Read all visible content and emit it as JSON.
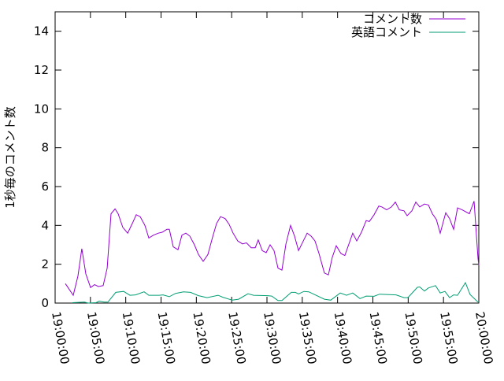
{
  "chart_data": {
    "type": "line",
    "title": "",
    "xlabel": "",
    "ylabel": "1秒毎のコメント数",
    "xlim": [
      "19:00:00",
      "20:00:00"
    ],
    "ylim": [
      0,
      15
    ],
    "x_ticks": [
      "19:00:00",
      "19:05:00",
      "19:10:00",
      "19:15:00",
      "19:20:00",
      "19:25:00",
      "19:30:00",
      "19:35:00",
      "19:40:00",
      "19:45:00",
      "19:50:00",
      "19:55:00",
      "20:00:00"
    ],
    "y_ticks": [
      0,
      2,
      4,
      6,
      8,
      10,
      12,
      14
    ],
    "grid": false,
    "legend_position": "top-right",
    "series": [
      {
        "name": "コメント数",
        "color": "#9400d3",
        "points": [
          [
            "19:01:27",
            1.0
          ],
          [
            "19:02:34",
            0.4
          ],
          [
            "19:03:14",
            1.4
          ],
          [
            "19:03:47",
            2.8
          ],
          [
            "19:04:21",
            1.5
          ],
          [
            "19:05:01",
            0.8
          ],
          [
            "19:05:35",
            0.95
          ],
          [
            "19:06:08",
            0.85
          ],
          [
            "19:06:48",
            0.9
          ],
          [
            "19:07:22",
            1.8
          ],
          [
            "19:07:55",
            4.6
          ],
          [
            "19:08:29",
            4.85
          ],
          [
            "19:08:55",
            4.6
          ],
          [
            "19:09:35",
            3.9
          ],
          [
            "19:10:16",
            3.6
          ],
          [
            "19:10:56",
            4.1
          ],
          [
            "19:11:29",
            4.55
          ],
          [
            "19:12:03",
            4.45
          ],
          [
            "19:12:43",
            4.0
          ],
          [
            "19:13:16",
            3.35
          ],
          [
            "19:13:56",
            3.5
          ],
          [
            "19:14:37",
            3.6
          ],
          [
            "19:15:10",
            3.65
          ],
          [
            "19:15:50",
            3.8
          ],
          [
            "19:16:10",
            3.8
          ],
          [
            "19:16:44",
            2.9
          ],
          [
            "19:17:24",
            2.75
          ],
          [
            "19:17:57",
            3.5
          ],
          [
            "19:18:31",
            3.6
          ],
          [
            "19:19:04",
            3.45
          ],
          [
            "19:19:44",
            3.0
          ],
          [
            "19:20:18",
            2.5
          ],
          [
            "19:20:58",
            2.15
          ],
          [
            "19:21:38",
            2.5
          ],
          [
            "19:22:18",
            3.4
          ],
          [
            "19:22:52",
            4.1
          ],
          [
            "19:23:25",
            4.45
          ],
          [
            "19:24:05",
            4.35
          ],
          [
            "19:24:39",
            4.05
          ],
          [
            "19:25:12",
            3.6
          ],
          [
            "19:25:52",
            3.2
          ],
          [
            "19:26:32",
            3.05
          ],
          [
            "19:27:06",
            3.1
          ],
          [
            "19:27:46",
            2.85
          ],
          [
            "19:28:20",
            2.85
          ],
          [
            "19:28:46",
            3.25
          ],
          [
            "19:29:20",
            2.7
          ],
          [
            "19:29:53",
            2.6
          ],
          [
            "19:30:27",
            3.0
          ],
          [
            "19:31:00",
            2.7
          ],
          [
            "19:31:34",
            1.8
          ],
          [
            "19:32:07",
            1.7
          ],
          [
            "19:32:41",
            3.05
          ],
          [
            "19:33:21",
            4.0
          ],
          [
            "19:33:54",
            3.45
          ],
          [
            "19:34:28",
            2.7
          ],
          [
            "19:35:41",
            3.6
          ],
          [
            "19:36:15",
            3.45
          ],
          [
            "19:36:48",
            3.2
          ],
          [
            "19:37:22",
            2.55
          ],
          [
            "19:38:08",
            1.55
          ],
          [
            "19:38:42",
            1.45
          ],
          [
            "19:39:15",
            2.35
          ],
          [
            "19:39:49",
            2.95
          ],
          [
            "19:40:29",
            2.55
          ],
          [
            "19:41:02",
            2.45
          ],
          [
            "19:42:09",
            3.6
          ],
          [
            "19:42:43",
            3.2
          ],
          [
            "19:43:23",
            3.65
          ],
          [
            "19:44:03",
            4.25
          ],
          [
            "19:44:30",
            4.2
          ],
          [
            "19:45:10",
            4.55
          ],
          [
            "19:45:50",
            5.0
          ],
          [
            "19:46:17",
            4.95
          ],
          [
            "19:46:57",
            4.8
          ],
          [
            "19:47:37",
            4.95
          ],
          [
            "19:48:11",
            5.2
          ],
          [
            "19:48:44",
            4.8
          ],
          [
            "19:49:24",
            4.75
          ],
          [
            "19:49:51",
            4.5
          ],
          [
            "19:50:31",
            4.75
          ],
          [
            "19:51:05",
            5.2
          ],
          [
            "19:51:38",
            4.95
          ],
          [
            "19:52:18",
            5.1
          ],
          [
            "19:52:52",
            5.05
          ],
          [
            "19:53:25",
            4.6
          ],
          [
            "19:53:59",
            4.3
          ],
          [
            "19:54:32",
            3.6
          ],
          [
            "19:55:19",
            4.65
          ],
          [
            "19:55:52",
            4.35
          ],
          [
            "19:56:26",
            3.8
          ],
          [
            "19:56:59",
            4.9
          ],
          [
            "19:57:39",
            4.8
          ],
          [
            "19:58:40",
            4.6
          ],
          [
            "19:59:20",
            5.25
          ],
          [
            "19:59:53",
            2.3
          ],
          [
            "20:00:00",
            1.95
          ]
        ]
      },
      {
        "name": "英語コメント",
        "color": "#009e73",
        "points": [
          [
            "19:02:27",
            0.02
          ],
          [
            "19:04:08",
            0.05
          ],
          [
            "19:04:41",
            0.0
          ],
          [
            "19:05:48",
            0.02
          ],
          [
            "19:06:15",
            0.1
          ],
          [
            "19:06:55",
            0.05
          ],
          [
            "19:07:28",
            0.05
          ],
          [
            "19:08:35",
            0.55
          ],
          [
            "19:09:42",
            0.6
          ],
          [
            "19:10:36",
            0.4
          ],
          [
            "19:11:23",
            0.42
          ],
          [
            "19:12:36",
            0.58
          ],
          [
            "19:13:16",
            0.4
          ],
          [
            "19:14:43",
            0.4
          ],
          [
            "19:15:17",
            0.42
          ],
          [
            "19:16:10",
            0.33
          ],
          [
            "19:17:04",
            0.5
          ],
          [
            "19:18:11",
            0.58
          ],
          [
            "19:19:11",
            0.55
          ],
          [
            "19:20:18",
            0.38
          ],
          [
            "19:21:31",
            0.28
          ],
          [
            "19:23:05",
            0.4
          ],
          [
            "19:23:45",
            0.3
          ],
          [
            "19:25:05",
            0.15
          ],
          [
            "19:25:59",
            0.2
          ],
          [
            "19:27:19",
            0.48
          ],
          [
            "19:28:06",
            0.4
          ],
          [
            "19:30:07",
            0.38
          ],
          [
            "19:30:40",
            0.36
          ],
          [
            "19:31:34",
            0.13
          ],
          [
            "19:32:07",
            0.13
          ],
          [
            "19:33:27",
            0.55
          ],
          [
            "19:34:01",
            0.55
          ],
          [
            "19:34:28",
            0.47
          ],
          [
            "19:35:14",
            0.6
          ],
          [
            "19:35:55",
            0.58
          ],
          [
            "19:38:08",
            0.2
          ],
          [
            "19:39:02",
            0.15
          ],
          [
            "19:40:22",
            0.52
          ],
          [
            "19:41:16",
            0.4
          ],
          [
            "19:42:09",
            0.52
          ],
          [
            "19:43:10",
            0.23
          ],
          [
            "19:44:03",
            0.36
          ],
          [
            "19:45:10",
            0.35
          ],
          [
            "19:45:57",
            0.46
          ],
          [
            "19:48:17",
            0.42
          ],
          [
            "19:49:24",
            0.28
          ],
          [
            "19:49:58",
            0.28
          ],
          [
            "19:51:18",
            0.81
          ],
          [
            "19:51:38",
            0.83
          ],
          [
            "19:52:18",
            0.62
          ],
          [
            "19:52:52",
            0.78
          ],
          [
            "19:53:52",
            0.9
          ],
          [
            "19:54:32",
            0.52
          ],
          [
            "19:55:12",
            0.6
          ],
          [
            "19:55:52",
            0.28
          ],
          [
            "19:56:26",
            0.42
          ],
          [
            "19:56:59",
            0.4
          ],
          [
            "19:58:06",
            1.05
          ],
          [
            "19:58:46",
            0.44
          ],
          [
            "19:59:53",
            0.05
          ]
        ]
      }
    ]
  }
}
